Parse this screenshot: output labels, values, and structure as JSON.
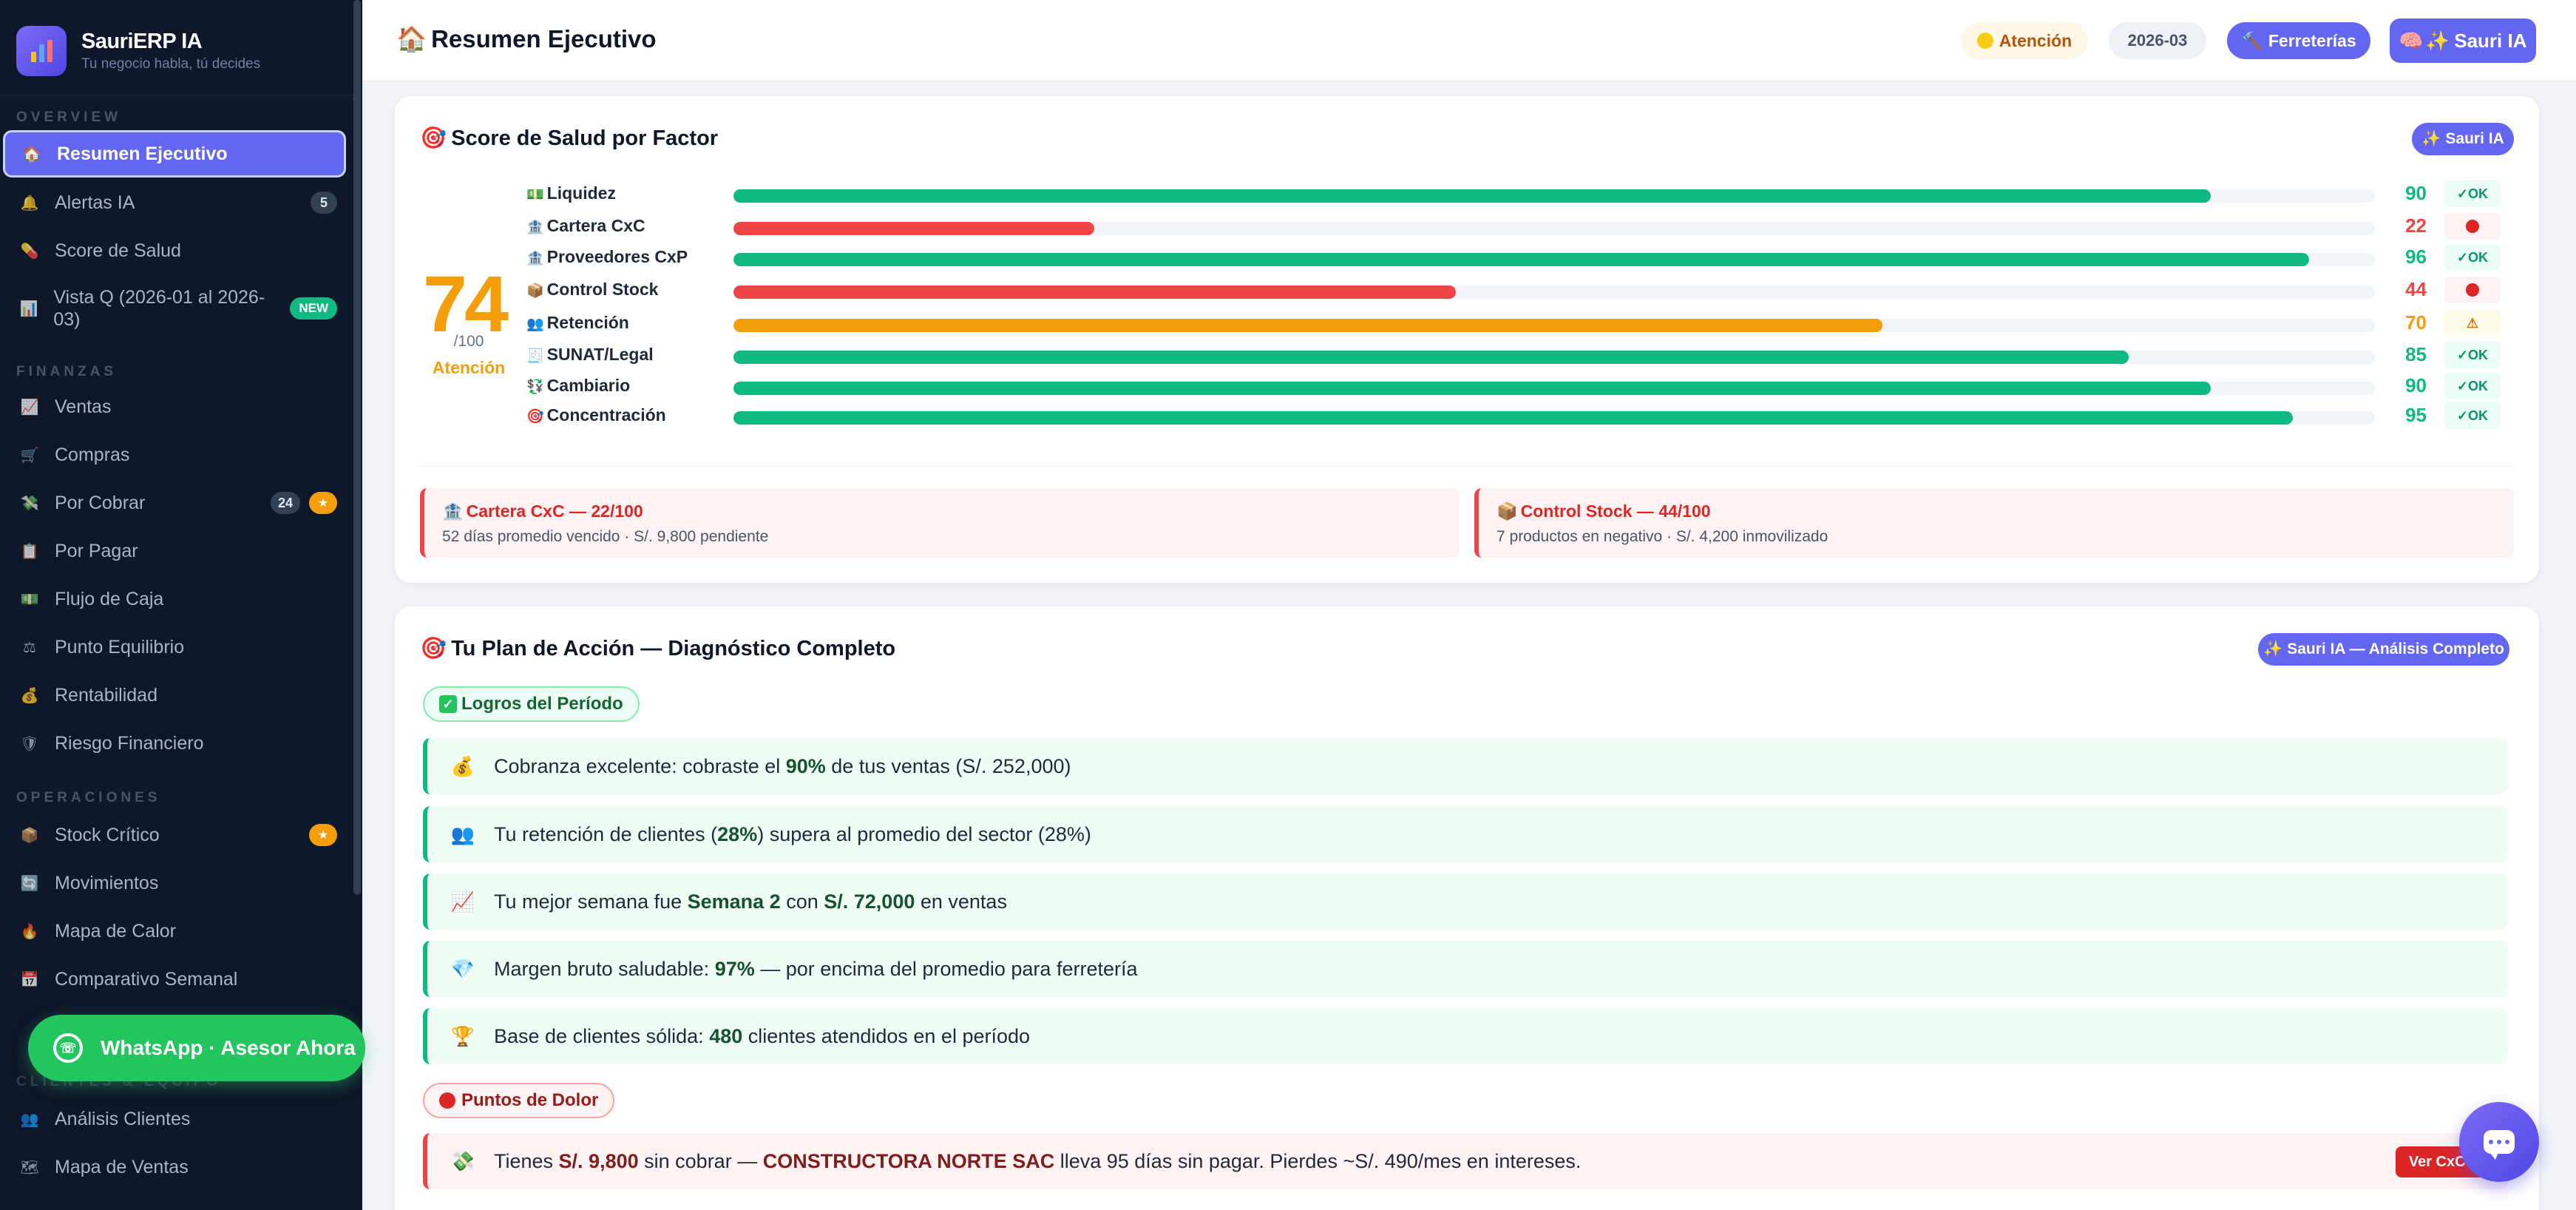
{
  "brand": {
    "name": "SauriERP IA",
    "tagline": "Tu negocio habla, tú decides"
  },
  "sidebar": {
    "sections": {
      "overview": "OVERVIEW",
      "finanzas": "FINANZAS",
      "operaciones": "OPERACIONES",
      "clientes": "CLIENTES & EQUIPO"
    },
    "items": [
      {
        "label": "Resumen Ejecutivo",
        "icon": "house-icon",
        "active": true
      },
      {
        "label": "Alertas IA",
        "icon": "bell-icon",
        "count": "5"
      },
      {
        "label": "Score de Salud",
        "icon": "pill-icon"
      },
      {
        "label": "Vista Q (2026-01 al 2026-03)",
        "icon": "chart-icon",
        "new": "NEW"
      },
      {
        "label": "Ventas",
        "icon": "trend-icon"
      },
      {
        "label": "Compras",
        "icon": "cart-icon"
      },
      {
        "label": "Por Cobrar",
        "icon": "money-icon",
        "count": "24",
        "star": "★"
      },
      {
        "label": "Por Pagar",
        "icon": "doc-icon"
      },
      {
        "label": "Flujo de Caja",
        "icon": "cash-icon"
      },
      {
        "label": "Punto Equilibrio",
        "icon": "scale-icon"
      },
      {
        "label": "Rentabilidad",
        "icon": "bag-icon"
      },
      {
        "label": "Riesgo Financiero",
        "icon": "shield-icon"
      },
      {
        "label": "Stock Crítico",
        "icon": "box-icon",
        "star": "★"
      },
      {
        "label": "Movimientos",
        "icon": "cycle-icon"
      },
      {
        "label": "Mapa de Calor",
        "icon": "fire-icon"
      },
      {
        "label": "Comparativo Semanal",
        "icon": "calendar-icon"
      },
      {
        "label": "Análisis Clientes",
        "icon": "users-icon"
      },
      {
        "label": "Mapa de Ventas",
        "icon": "map-icon"
      }
    ],
    "whatsapp_label": "WhatsApp · Asesor Ahora"
  },
  "header": {
    "title": "Resumen Ejecutivo",
    "status": "Atención",
    "period": "2026-03",
    "sector": "Ferreterías",
    "ai_button": "Sauri IA"
  },
  "health": {
    "title": "Score de Salud por Factor",
    "ai_pill": "Sauri IA",
    "score": "74",
    "score_den": "/100",
    "score_label": "Atención",
    "factors": [
      {
        "name": "Liquidez",
        "icon": "💵",
        "value": 90,
        "status": "ok",
        "status_label": "✓OK"
      },
      {
        "name": "Cartera CxC",
        "icon": "🏦",
        "value": 22,
        "status": "bad",
        "status_label": ""
      },
      {
        "name": "Proveedores CxP",
        "icon": "🏦",
        "value": 96,
        "status": "ok",
        "status_label": "✓OK"
      },
      {
        "name": "Control Stock",
        "icon": "📦",
        "value": 44,
        "status": "bad",
        "status_label": ""
      },
      {
        "name": "Retención",
        "icon": "👥",
        "value": 70,
        "status": "warn",
        "status_label": "⚠"
      },
      {
        "name": "SUNAT/Legal",
        "icon": "🧾",
        "value": 85,
        "status": "ok",
        "status_label": "✓OK"
      },
      {
        "name": "Cambiario",
        "icon": "💱",
        "value": 90,
        "status": "ok",
        "status_label": "✓OK"
      },
      {
        "name": "Concentración",
        "icon": "🎯",
        "value": 95,
        "status": "ok",
        "status_label": "✓OK"
      }
    ],
    "colors": {
      "ok": "#10b981",
      "bad": "#ef4444",
      "warn": "#f59e0b"
    },
    "alerts": [
      {
        "title": "Cartera CxC — 22/100",
        "icon": "🏦",
        "desc": "52 días promedio vencido · S/. 9,800 pendiente"
      },
      {
        "title": "Control Stock — 44/100",
        "icon": "📦",
        "desc": "7 productos en negativo · S/. 4,200 inmovilizado"
      }
    ]
  },
  "plan": {
    "title": "Tu Plan de Acción — Diagnóstico Completo",
    "ai_pill": "Sauri IA — Análisis Completo",
    "achievements_label": "Logros del Período",
    "pain_label": "Puntos de Dolor",
    "achievements": [
      {
        "icon": "💰",
        "parts": [
          "Cobranza excelente: cobraste el ",
          "90%",
          " de tus ventas (S/. 252,000)"
        ]
      },
      {
        "icon": "👥",
        "parts": [
          "Tu retención de clientes (",
          "28%",
          ") supera al promedio del sector (28%)"
        ]
      },
      {
        "icon": "📈",
        "parts": [
          "Tu mejor semana fue ",
          "Semana 2",
          " con ",
          "S/. 72,000",
          " en ventas"
        ]
      },
      {
        "icon": "💎",
        "parts": [
          "Margen bruto saludable: ",
          "97%",
          " — por encima del promedio para ferretería"
        ]
      },
      {
        "icon": "🏆",
        "parts": [
          "Base de clientes sólida: ",
          "480",
          " clientes atendidos en el período"
        ]
      }
    ],
    "pains": [
      {
        "icon": "💸",
        "parts": [
          "Tienes ",
          "S/. 9,800",
          " sin cobrar — ",
          "CONSTRUCTORA NORTE SAC",
          " lleva 95 días sin pagar. Pierdes ~S/. 490/mes en intereses."
        ],
        "button": "Ver CxC →"
      }
    ]
  }
}
